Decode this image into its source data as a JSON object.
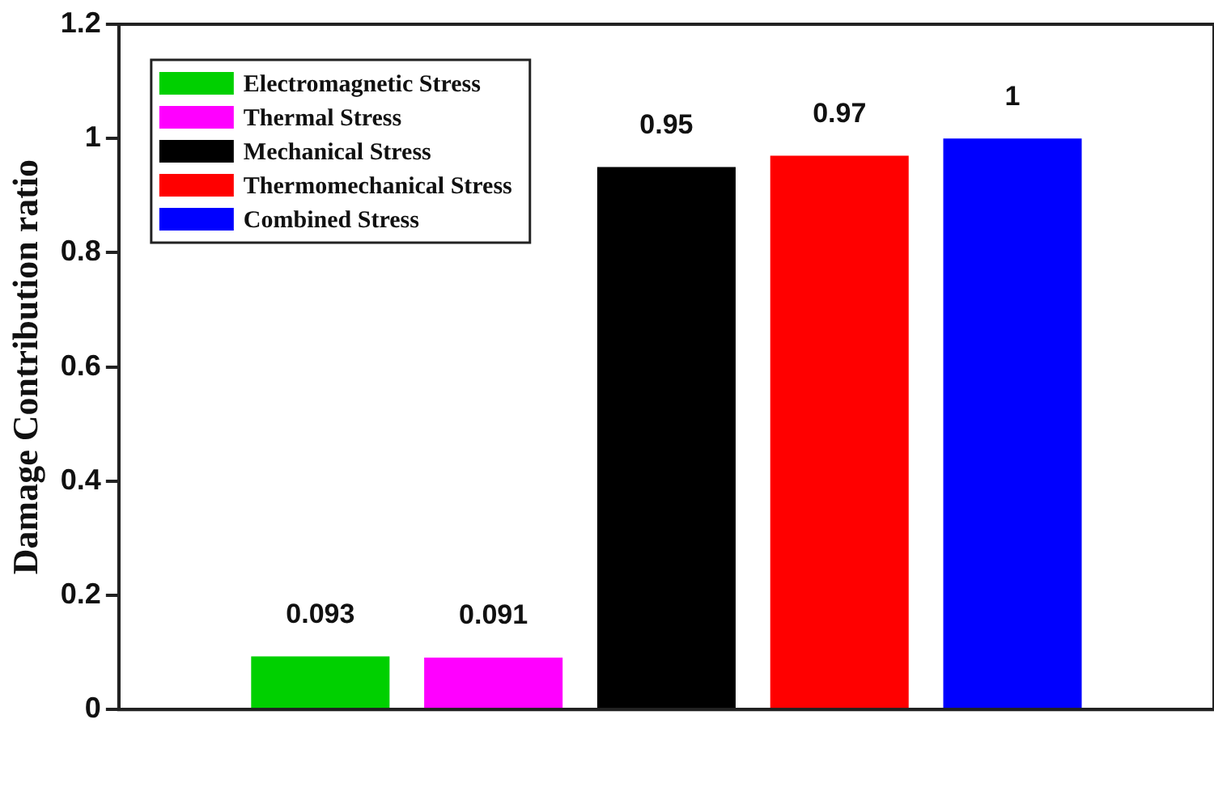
{
  "chart_data": {
    "type": "bar",
    "ylabel": "Damage Contribution ratio",
    "categories": [
      null
    ],
    "series": [
      {
        "name": "Electromagnetic Stress",
        "color": "#00d000",
        "values": [
          0.093
        ]
      },
      {
        "name": "Thermal Stress",
        "color": "#ff00ff",
        "values": [
          0.091
        ]
      },
      {
        "name": "Mechanical Stress",
        "color": "#000000",
        "values": [
          0.95
        ]
      },
      {
        "name": "Thermomechanical Stress",
        "color": "#ff0000",
        "values": [
          0.97
        ]
      },
      {
        "name": "Combined Stress",
        "color": "#0000ff",
        "values": [
          1
        ]
      }
    ],
    "ylim": [
      0,
      1.2
    ],
    "yticks": [
      0,
      0.2,
      0.4,
      0.6,
      0.8,
      1,
      1.2
    ],
    "grid": false,
    "legend": "top left",
    "data_labels": true
  }
}
